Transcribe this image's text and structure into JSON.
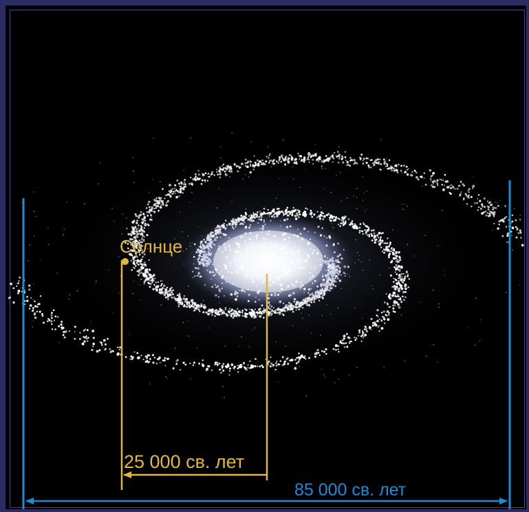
{
  "diagram": {
    "background_color": "#000000",
    "frame_color": "#2b2b66",
    "star_color": "#ffffff",
    "core_color": "#e6ecff",
    "sun": {
      "label": "Солнце",
      "color": "#e0b840"
    },
    "sun_distance": {
      "label": "25 000 св. лет",
      "color": "#e0b840"
    },
    "galaxy_diameter": {
      "label": "85 000 св. лет",
      "color": "#1a8cd8"
    }
  }
}
